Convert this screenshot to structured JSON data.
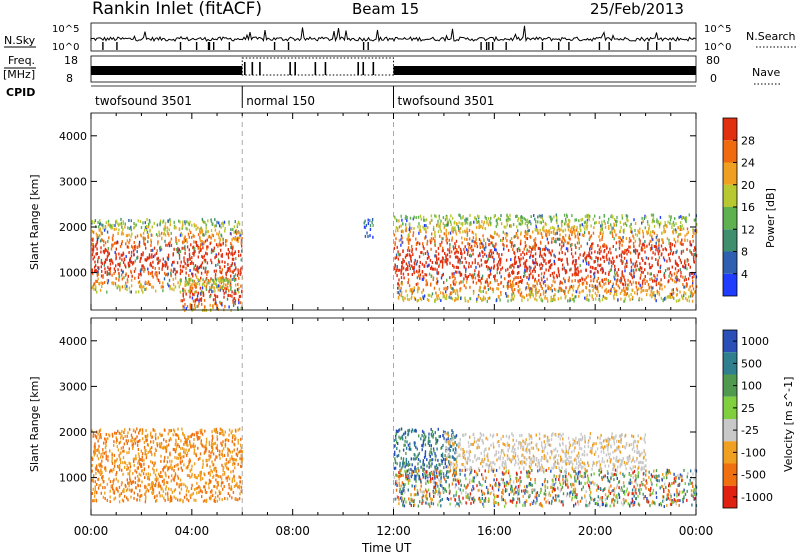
{
  "header": {
    "station": "Rankin Inlet (fitACF)",
    "beam": "Beam 15",
    "date": "25/Feb/2013"
  },
  "strip": {
    "nsky_label": "N.Sky",
    "nsky_ticks_left": [
      "10^5",
      "10^0"
    ],
    "nsky_ticks_right": [
      "10^5",
      "10^0"
    ],
    "nsearch_label": "N.Search",
    "freq_label_top": "Freq.",
    "freq_label_bottom": "[MHz]",
    "freq_ticks_left": [
      "18",
      "8"
    ],
    "nave_ticks_right": [
      "80",
      "0"
    ],
    "nave_label": "Nave",
    "cpid_label": "CPID",
    "cpid_segments": [
      {
        "label": "twofsound 3501",
        "start_h": 0,
        "end_h": 6
      },
      {
        "label": "normal 150",
        "start_h": 6,
        "end_h": 12
      },
      {
        "label": "twofsound 3501",
        "start_h": 12,
        "end_h": 24
      }
    ]
  },
  "panels": {
    "y_axis_label": "Slant Range [km]",
    "x_axis_label": "Time UT",
    "x_tick_labels": [
      "00:00",
      "04:00",
      "08:00",
      "12:00",
      "16:00",
      "20:00",
      "00:00"
    ],
    "y_tick_labels": [
      "1000",
      "2000",
      "3000",
      "4000"
    ],
    "power_colorbar": {
      "label": "Power [dB]",
      "ticks": [
        "4",
        "8",
        "12",
        "16",
        "20",
        "24",
        "28"
      ],
      "colors": [
        "#1f3cff",
        "#2f5fb0",
        "#3f8f6f",
        "#5fb04f",
        "#b8c830",
        "#f0a020",
        "#f06a10",
        "#e03010"
      ]
    },
    "velocity_colorbar": {
      "label": "Velocity [m s^-1]",
      "ticks": [
        "1000",
        "500",
        "100",
        "25",
        "-25",
        "-100",
        "-500",
        "-1000"
      ],
      "colors": [
        "#2a50b8",
        "#2f7f8f",
        "#4f9a4f",
        "#7fcf3f",
        "#c8c8c8",
        "#f0a020",
        "#f07010",
        "#e02010"
      ]
    }
  },
  "chart_data": [
    {
      "type": "heatmap",
      "title": "Power",
      "x_range_hours": [
        0,
        24
      ],
      "ylim_km": [
        180,
        4500
      ],
      "colorbar_range_db": [
        0,
        32
      ],
      "regions": [
        {
          "t0": 0.0,
          "t1": 6.0,
          "r0": 600,
          "r1": 2200,
          "level": "high"
        },
        {
          "t0": 3.5,
          "t1": 6.0,
          "r0": 200,
          "r1": 900,
          "level": "high"
        },
        {
          "t0": 10.8,
          "t1": 11.2,
          "r0": 1800,
          "r1": 2200,
          "level": "low"
        },
        {
          "t0": 12.0,
          "t1": 24.0,
          "r0": 400,
          "r1": 2300,
          "level": "high"
        }
      ]
    },
    {
      "type": "heatmap",
      "title": "Velocity",
      "x_range_hours": [
        0,
        24
      ],
      "ylim_km": [
        180,
        4500
      ],
      "colorbar_range_mps": [
        -1000,
        1000
      ],
      "regions": [
        {
          "t0": 0.0,
          "t1": 6.0,
          "r0": 500,
          "r1": 2100,
          "level": "negative"
        },
        {
          "t0": 12.0,
          "t1": 14.5,
          "r0": 1000,
          "r1": 2100,
          "level": "positive"
        },
        {
          "t0": 14.0,
          "t1": 22.0,
          "r0": 1200,
          "r1": 2000,
          "level": "near-zero"
        },
        {
          "t0": 12.0,
          "t1": 24.0,
          "r0": 400,
          "r1": 1200,
          "level": "mixed"
        }
      ]
    }
  ]
}
